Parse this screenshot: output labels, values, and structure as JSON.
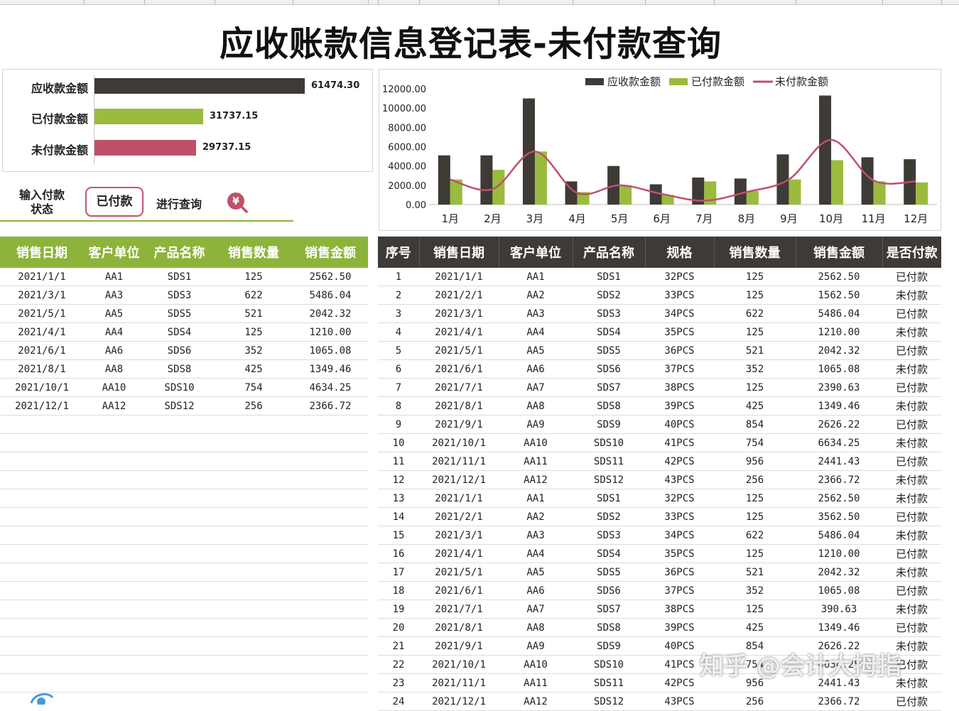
{
  "title": "应收账款信息登记表-未付款查询",
  "summary": {
    "items": [
      {
        "label": "应收款金额",
        "value": "61474.30",
        "amount": 61474.3,
        "color": "#3e3a35"
      },
      {
        "label": "已付款金额",
        "value": "31737.15",
        "amount": 31737.15,
        "color": "#9bbb3f"
      },
      {
        "label": "未付款金额",
        "value": "29737.15",
        "amount": 29737.15,
        "color": "#c0506a"
      }
    ]
  },
  "query": {
    "label_line1": "输入付款",
    "label_line2": "状态",
    "input_value": "已付款",
    "button_label": "进行查询",
    "icon": "yen-search-icon",
    "icon_glyph": "¥"
  },
  "chart_data": {
    "type": "bar",
    "categories": [
      "1月",
      "2月",
      "3月",
      "4月",
      "5月",
      "6月",
      "7月",
      "8月",
      "9月",
      "10月",
      "11月",
      "12月"
    ],
    "series": [
      {
        "name": "应收款金额",
        "type": "bar",
        "color": "#3e3a35",
        "values": [
          5100,
          5100,
          11000,
          2400,
          4000,
          2100,
          2800,
          2700,
          5200,
          11300,
          4900,
          4700
        ]
      },
      {
        "name": "已付款金额",
        "type": "bar",
        "color": "#9bbb3f",
        "values": [
          2600,
          3600,
          5500,
          1300,
          2000,
          1000,
          2400,
          1400,
          2600,
          4600,
          2400,
          2300
        ]
      },
      {
        "name": "未付款金额",
        "type": "line",
        "color": "#c0506a",
        "values": [
          2600,
          1600,
          5500,
          1200,
          2000,
          1100,
          400,
          1300,
          2600,
          6700,
          2500,
          2400
        ]
      }
    ],
    "y_ticks": [
      "0.00",
      "2000.00",
      "4000.00",
      "6000.00",
      "8000.00",
      "10000.00",
      "12000.00"
    ],
    "ylim": [
      0,
      12000
    ],
    "legend_position": "top",
    "grid": false
  },
  "left_table": {
    "headers": [
      "销售日期",
      "客户单位",
      "产品名称",
      "销售数量",
      "销售金额"
    ],
    "rows": [
      [
        "2021/1/1",
        "AA1",
        "SDS1",
        "125",
        "2562.50"
      ],
      [
        "2021/3/1",
        "AA3",
        "SDS3",
        "622",
        "5486.04"
      ],
      [
        "2021/5/1",
        "AA5",
        "SDS5",
        "521",
        "2042.32"
      ],
      [
        "2021/4/1",
        "AA4",
        "SDS4",
        "125",
        "1210.00"
      ],
      [
        "2021/6/1",
        "AA6",
        "SDS6",
        "352",
        "1065.08"
      ],
      [
        "2021/8/1",
        "AA8",
        "SDS8",
        "425",
        "1349.46"
      ],
      [
        "2021/10/1",
        "AA10",
        "SDS10",
        "754",
        "4634.25"
      ],
      [
        "2021/12/1",
        "AA12",
        "SDS12",
        "256",
        "2366.72"
      ]
    ],
    "blank_rows": 15
  },
  "right_table": {
    "headers": [
      "序号",
      "销售日期",
      "客户单位",
      "产品名称",
      "规格",
      "销售数量",
      "销售金额",
      "是否付款"
    ],
    "rows": [
      [
        "1",
        "2021/1/1",
        "AA1",
        "SDS1",
        "32PCS",
        "125",
        "2562.50",
        "已付款"
      ],
      [
        "2",
        "2021/2/1",
        "AA2",
        "SDS2",
        "33PCS",
        "125",
        "1562.50",
        "未付款"
      ],
      [
        "3",
        "2021/3/1",
        "AA3",
        "SDS3",
        "34PCS",
        "622",
        "5486.04",
        "已付款"
      ],
      [
        "4",
        "2021/4/1",
        "AA4",
        "SDS4",
        "35PCS",
        "125",
        "1210.00",
        "未付款"
      ],
      [
        "5",
        "2021/5/1",
        "AA5",
        "SDS5",
        "36PCS",
        "521",
        "2042.32",
        "已付款"
      ],
      [
        "6",
        "2021/6/1",
        "AA6",
        "SDS6",
        "37PCS",
        "352",
        "1065.08",
        "未付款"
      ],
      [
        "7",
        "2021/7/1",
        "AA7",
        "SDS7",
        "38PCS",
        "125",
        "2390.63",
        "已付款"
      ],
      [
        "8",
        "2021/8/1",
        "AA8",
        "SDS8",
        "39PCS",
        "425",
        "1349.46",
        "未付款"
      ],
      [
        "9",
        "2021/9/1",
        "AA9",
        "SDS9",
        "40PCS",
        "854",
        "2626.22",
        "已付款"
      ],
      [
        "10",
        "2021/10/1",
        "AA10",
        "SDS10",
        "41PCS",
        "754",
        "6634.25",
        "未付款"
      ],
      [
        "11",
        "2021/11/1",
        "AA11",
        "SDS11",
        "42PCS",
        "956",
        "2441.43",
        "已付款"
      ],
      [
        "12",
        "2021/12/1",
        "AA12",
        "SDS12",
        "43PCS",
        "256",
        "2366.72",
        "未付款"
      ],
      [
        "13",
        "2021/1/1",
        "AA1",
        "SDS1",
        "32PCS",
        "125",
        "2562.50",
        "未付款"
      ],
      [
        "14",
        "2021/2/1",
        "AA2",
        "SDS2",
        "33PCS",
        "125",
        "3562.50",
        "已付款"
      ],
      [
        "15",
        "2021/3/1",
        "AA3",
        "SDS3",
        "34PCS",
        "622",
        "5486.04",
        "未付款"
      ],
      [
        "16",
        "2021/4/1",
        "AA4",
        "SDS4",
        "35PCS",
        "125",
        "1210.00",
        "已付款"
      ],
      [
        "17",
        "2021/5/1",
        "AA5",
        "SDS5",
        "36PCS",
        "521",
        "2042.32",
        "未付款"
      ],
      [
        "18",
        "2021/6/1",
        "AA6",
        "SDS6",
        "37PCS",
        "352",
        "1065.08",
        "已付款"
      ],
      [
        "19",
        "2021/7/1",
        "AA7",
        "SDS7",
        "38PCS",
        "125",
        "390.63",
        "未付款"
      ],
      [
        "20",
        "2021/8/1",
        "AA8",
        "SDS8",
        "39PCS",
        "425",
        "1349.46",
        "已付款"
      ],
      [
        "21",
        "2021/9/1",
        "AA9",
        "SDS9",
        "40PCS",
        "854",
        "2626.22",
        "未付款"
      ],
      [
        "22",
        "2021/10/1",
        "AA10",
        "SDS10",
        "41PCS",
        "754",
        "4634.25",
        "已付款"
      ],
      [
        "23",
        "2021/11/1",
        "AA11",
        "SDS11",
        "42PCS",
        "956",
        "2441.43",
        "未付款"
      ],
      [
        "24",
        "2021/12/1",
        "AA12",
        "SDS12",
        "43PCS",
        "256",
        "2366.72",
        "已付款"
      ]
    ]
  },
  "watermark": "知乎 @会计大拇指"
}
